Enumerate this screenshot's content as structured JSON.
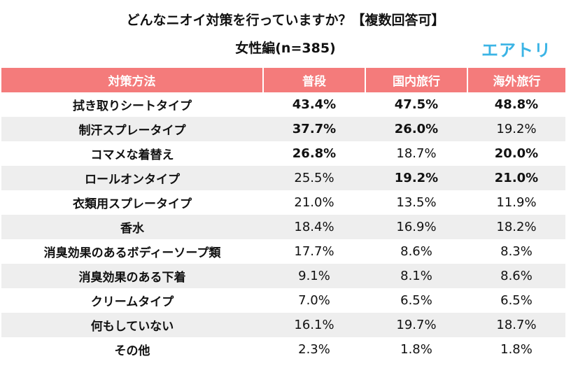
{
  "header": {
    "title": "どんなニオイ対策を行っていますか？【複数回答可】",
    "subtitle": "女性編(n=385)",
    "logo": "エアトリ"
  },
  "table": {
    "columns": [
      "対策方法",
      "普段",
      "国内旅行",
      "海外旅行"
    ],
    "rows": [
      [
        "拭き取りシートタイプ",
        "43.4%",
        "47.5%",
        "48.8%"
      ],
      [
        "制汗スプレータイプ",
        "37.7%",
        "26.0%",
        "19.2%"
      ],
      [
        "コマメな着替え",
        "26.8%",
        "18.7%",
        "20.0%"
      ],
      [
        "ロールオンタイプ",
        "25.5%",
        "19.2%",
        "21.0%"
      ],
      [
        "衣類用スプレータイプ",
        "21.0%",
        "13.5%",
        "11.9%"
      ],
      [
        "香水",
        "18.4%",
        "16.9%",
        "18.2%"
      ],
      [
        "消臭効果のあるボディーソープ類",
        "17.7%",
        "8.6%",
        "8.3%"
      ],
      [
        "消臭効果のある下着",
        "9.1%",
        "8.1%",
        "8.6%"
      ],
      [
        "クリームタイプ",
        "7.0%",
        "6.5%",
        "6.5%"
      ],
      [
        "何もしていない",
        "16.1%",
        "19.7%",
        "18.7%"
      ],
      [
        "その他",
        "2.3%",
        "1.8%",
        "1.8%"
      ]
    ],
    "bold": [
      [
        true,
        true,
        true
      ],
      [
        true,
        true,
        false
      ],
      [
        true,
        false,
        true
      ],
      [
        false,
        true,
        true
      ],
      [
        false,
        false,
        false
      ],
      [
        false,
        false,
        false
      ],
      [
        false,
        false,
        false
      ],
      [
        false,
        false,
        false
      ],
      [
        false,
        false,
        false
      ],
      [
        false,
        false,
        false
      ],
      [
        false,
        false,
        false
      ]
    ]
  }
}
